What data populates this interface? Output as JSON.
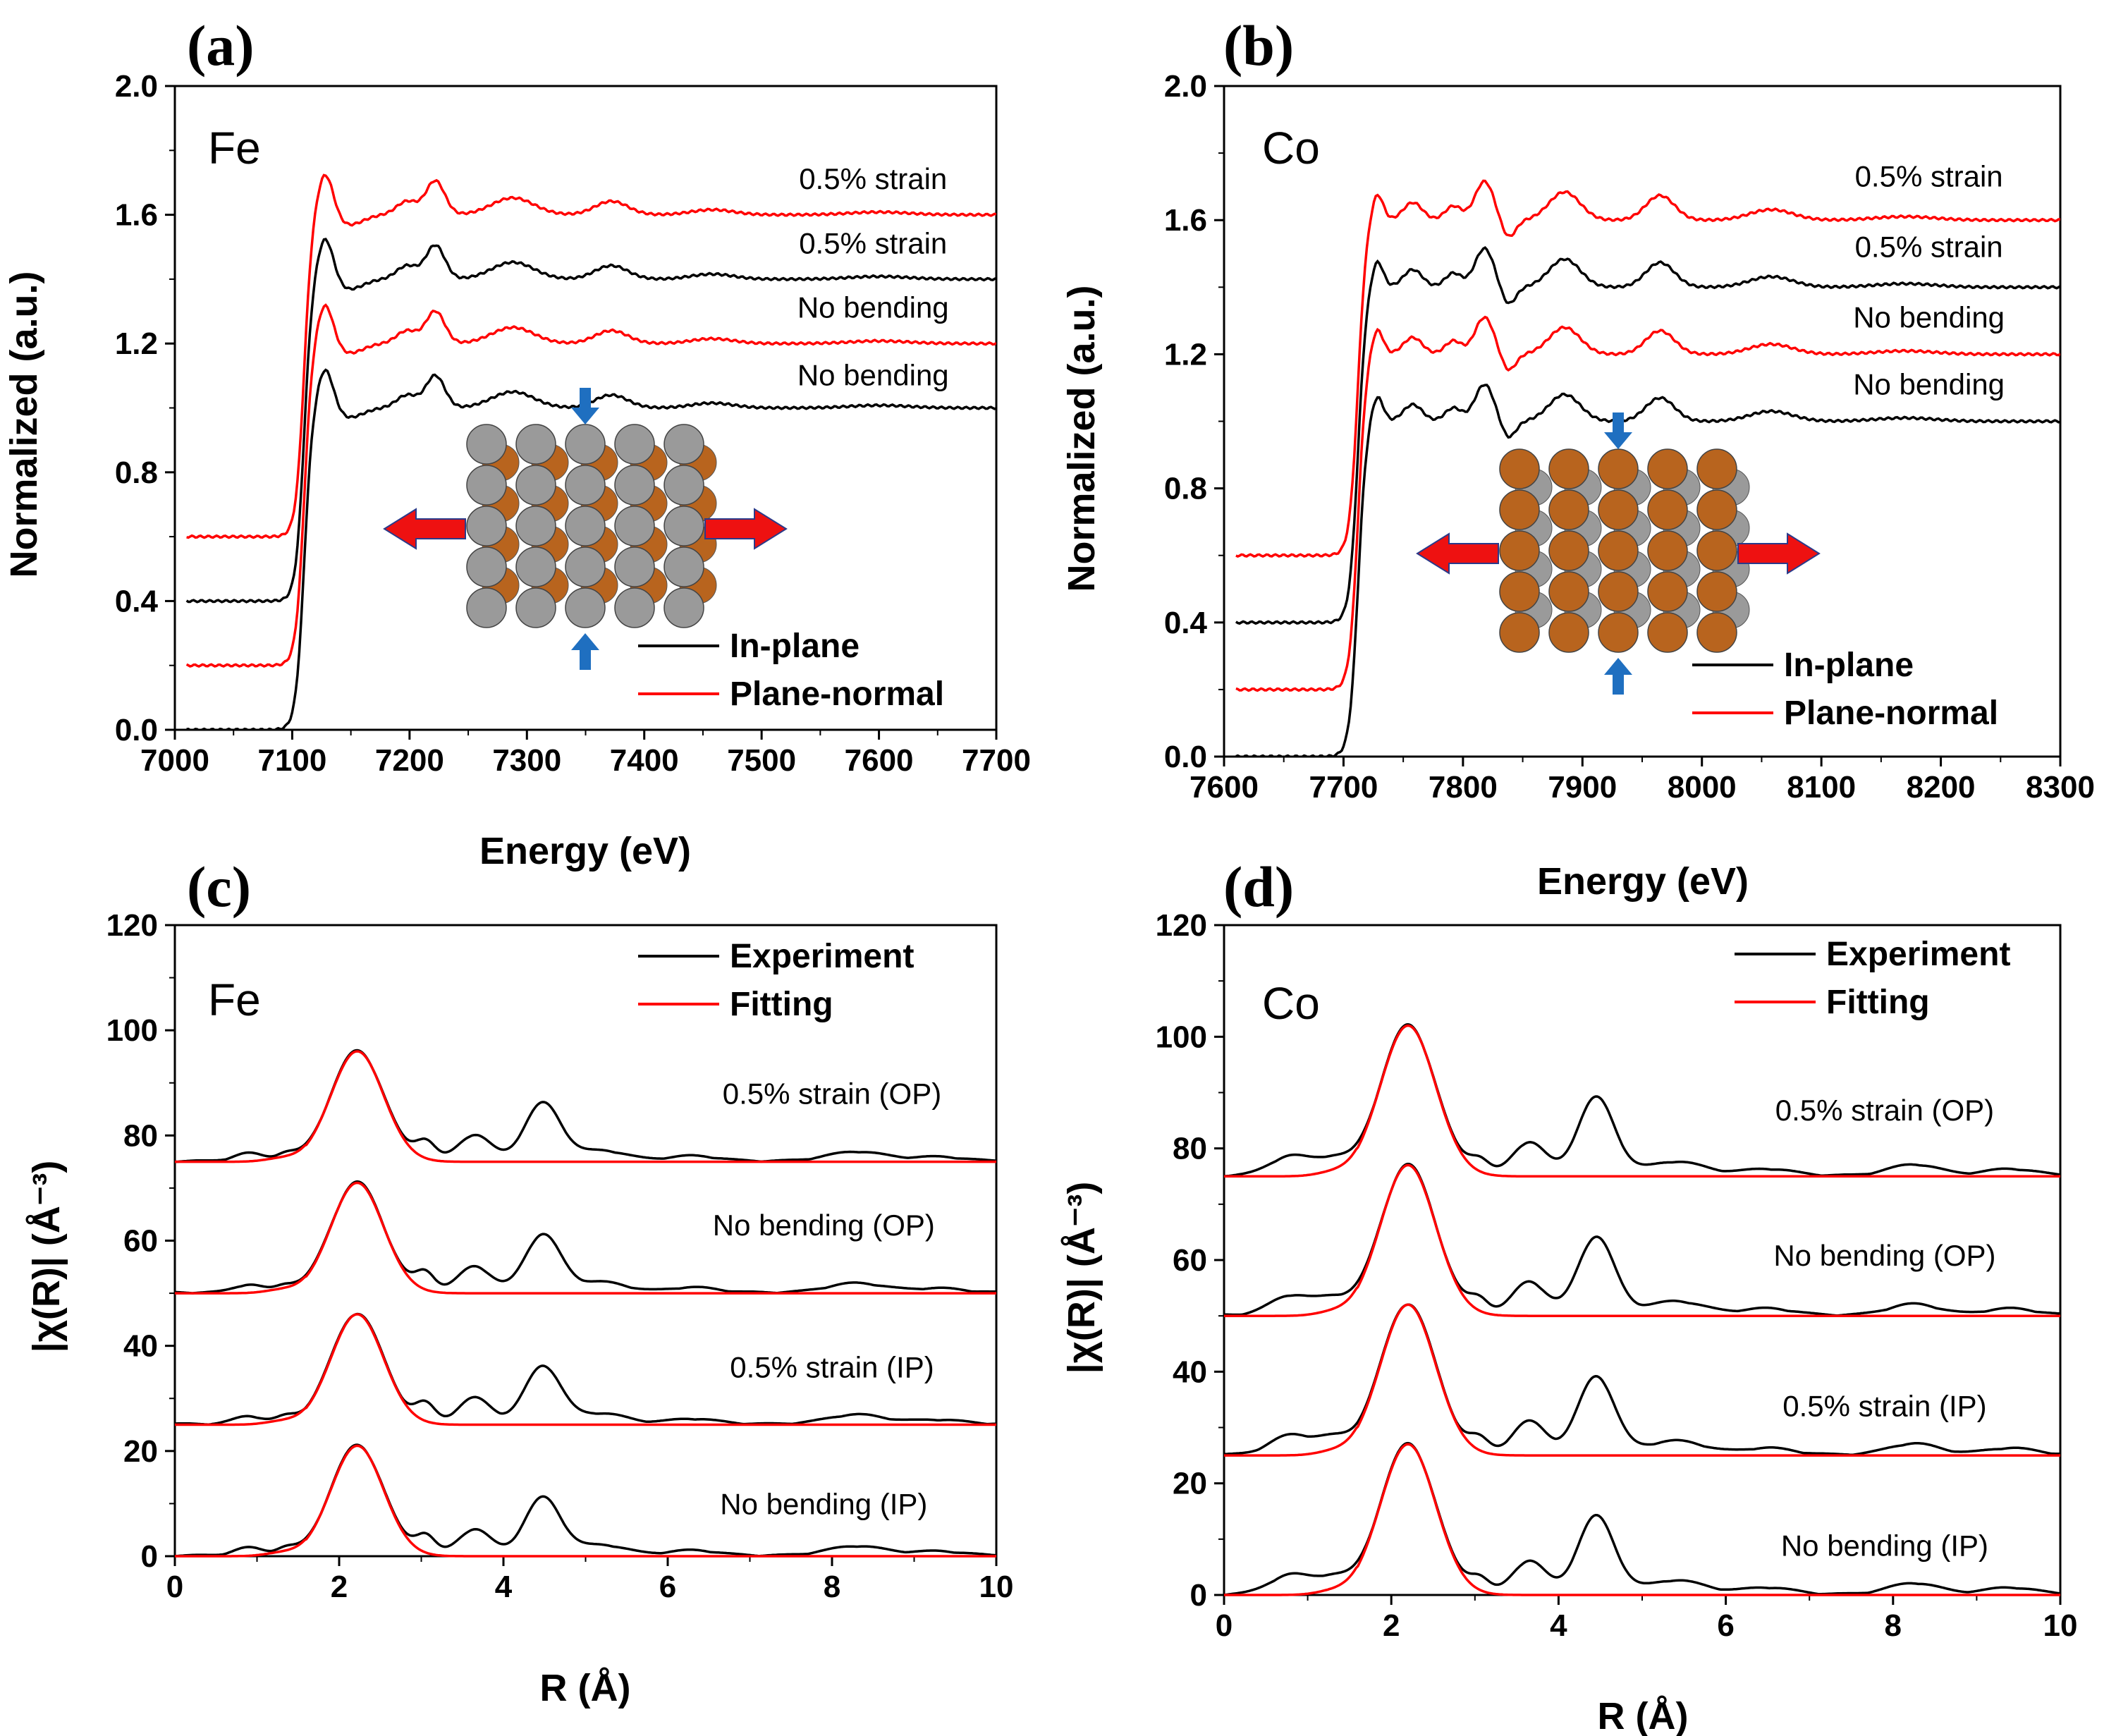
{
  "colors": {
    "in_plane": "#000000",
    "plane_normal": "#ff0000",
    "experiment": "#000000",
    "fitting": "#ff0000",
    "arrow_red": "#ee1111",
    "arrow_blue": "#1f6fc0",
    "atom_gray": "#9a9a9a",
    "atom_brown": "#b8641e"
  },
  "chart_data": [
    {
      "panel": "(a)",
      "type": "line",
      "element_label": "Fe",
      "xlabel": "Energy (eV)",
      "ylabel": "Normalized (a.u.)",
      "xlim": [
        7000,
        7700
      ],
      "ylim": [
        0.0,
        2.0
      ],
      "xticks": [
        "7000",
        "7100",
        "7200",
        "7300",
        "7400",
        "7500",
        "7600",
        "7700"
      ],
      "yticks": [
        "0.0",
        "0.4",
        "0.8",
        "1.2",
        "1.6",
        "2.0"
      ],
      "legend": [
        {
          "name": "In-plane",
          "color": "#000000"
        },
        {
          "name": "Plane-normal",
          "color": "#ff0000"
        }
      ],
      "edge": 7110,
      "peak": 7128,
      "x_start": 7010,
      "features": [
        [
          7128,
          0.13,
          7
        ],
        [
          7148,
          -0.03,
          12
        ],
        [
          7198,
          0.04,
          9
        ],
        [
          7222,
          0.1,
          8
        ],
        [
          7288,
          0.05,
          18
        ],
        [
          7372,
          0.04,
          14
        ],
        [
          7458,
          0.015,
          18
        ],
        [
          7600,
          0.008,
          25
        ]
      ],
      "curves": [
        {
          "label": "No bending",
          "series": "In-plane",
          "offset": 0.0
        },
        {
          "label": "No bending",
          "series": "Plane-normal",
          "offset": 0.2
        },
        {
          "label": "0.5% strain",
          "series": "In-plane",
          "offset": 0.4
        },
        {
          "label": "0.5% strain",
          "series": "Plane-normal",
          "offset": 0.6
        }
      ],
      "curve_labels": [
        {
          "text": "0.5% strain",
          "x": 7595,
          "y": 1.68
        },
        {
          "text": "0.5% strain",
          "x": 7595,
          "y": 1.48
        },
        {
          "text": "No bending",
          "x": 7595,
          "y": 1.28
        },
        {
          "text": "No bending",
          "x": 7595,
          "y": 1.07
        }
      ]
    },
    {
      "panel": "(b)",
      "type": "line",
      "element_label": "Co",
      "xlabel": "Energy (eV)",
      "ylabel": "Normalized (a.u.)",
      "xlim": [
        7600,
        8300
      ],
      "ylim": [
        0.0,
        2.0
      ],
      "xticks": [
        "7600",
        "7700",
        "7800",
        "7900",
        "8000",
        "8100",
        "8200",
        "8300"
      ],
      "yticks": [
        "0.0",
        "0.4",
        "0.8",
        "1.2",
        "1.6",
        "2.0"
      ],
      "legend": [
        {
          "name": "In-plane",
          "color": "#000000"
        },
        {
          "name": "Plane-normal",
          "color": "#ff0000"
        }
      ],
      "edge": 7712,
      "peak": 7728,
      "x_start": 7610,
      "features": [
        [
          7728,
          0.08,
          5
        ],
        [
          7758,
          0.05,
          8
        ],
        [
          7792,
          0.04,
          7
        ],
        [
          7818,
          0.11,
          8
        ],
        [
          7838,
          -0.05,
          6
        ],
        [
          7885,
          0.08,
          13
        ],
        [
          7965,
          0.07,
          12
        ],
        [
          8058,
          0.03,
          18
        ],
        [
          8170,
          0.01,
          25
        ]
      ],
      "curves": [
        {
          "label": "No bending",
          "series": "In-plane",
          "offset": 0.0
        },
        {
          "label": "No bending",
          "series": "Plane-normal",
          "offset": 0.2
        },
        {
          "label": "0.5% strain",
          "series": "In-plane",
          "offset": 0.4
        },
        {
          "label": "0.5% strain",
          "series": "Plane-normal",
          "offset": 0.6
        }
      ],
      "curve_labels": [
        {
          "text": "0.5% strain",
          "x": 8190,
          "y": 1.7
        },
        {
          "text": "0.5% strain",
          "x": 8190,
          "y": 1.49
        },
        {
          "text": "No bending",
          "x": 8190,
          "y": 1.28
        },
        {
          "text": "No bending",
          "x": 8190,
          "y": 1.08
        }
      ]
    },
    {
      "panel": "(c)",
      "type": "line",
      "element_label": "Fe",
      "xlabel": "R (Å)",
      "ylabel": "|χ(R)| (Å⁻³)",
      "xlim": [
        0,
        10
      ],
      "ylim": [
        0,
        120
      ],
      "xticks": [
        "0",
        "2",
        "4",
        "6",
        "8",
        "10"
      ],
      "yticks": [
        "0",
        "20",
        "40",
        "60",
        "80",
        "100",
        "120"
      ],
      "legend": [
        {
          "name": "Experiment",
          "color": "#000000"
        },
        {
          "name": "Fitting",
          "color": "#ff0000"
        }
      ],
      "main_peak": {
        "center": 2.22,
        "height": 21,
        "width": 0.32
      },
      "experiment_features": [
        [
          0.9,
          1.5,
          0.18
        ],
        [
          1.35,
          1.2,
          0.12
        ],
        [
          3.05,
          3.5,
          0.12
        ],
        [
          3.65,
          5,
          0.2
        ],
        [
          4.48,
          11,
          0.22
        ],
        [
          5.2,
          2,
          0.3
        ],
        [
          6.3,
          1,
          0.3
        ],
        [
          8.3,
          1.8,
          0.35
        ],
        [
          9.3,
          0.8,
          0.3
        ]
      ],
      "curves": [
        {
          "label": "No bending (IP)",
          "offset": 0
        },
        {
          "label": "0.5% strain (IP)",
          "offset": 25
        },
        {
          "label": "No bending (OP)",
          "offset": 50
        },
        {
          "label": "0.5% strain (OP)",
          "offset": 75
        }
      ],
      "curve_labels": [
        {
          "text": "0.5% strain (OP)",
          "x": 8.0,
          "y": 86
        },
        {
          "text": "No bending (OP)",
          "x": 7.9,
          "y": 61
        },
        {
          "text": "0.5% strain (IP)",
          "x": 8.0,
          "y": 34
        },
        {
          "text": "No bending (IP)",
          "x": 7.9,
          "y": 8
        }
      ]
    },
    {
      "panel": "(d)",
      "type": "line",
      "element_label": "Co",
      "xlabel": "R (Å)",
      "ylabel": "|χ(R)| (Å⁻³)",
      "xlim": [
        0,
        10
      ],
      "ylim": [
        0,
        120
      ],
      "xticks": [
        "0",
        "2",
        "4",
        "6",
        "8",
        "10"
      ],
      "yticks": [
        "0",
        "20",
        "40",
        "60",
        "80",
        "100",
        "120"
      ],
      "legend": [
        {
          "name": "Experiment",
          "color": "#000000"
        },
        {
          "name": "Fitting",
          "color": "#ff0000"
        }
      ],
      "main_peak": {
        "center": 2.2,
        "height": 27,
        "width": 0.33
      },
      "experiment_features": [
        [
          0.8,
          3.5,
          0.25
        ],
        [
          1.3,
          2.5,
          0.2
        ],
        [
          3.05,
          2.5,
          0.12
        ],
        [
          3.65,
          6,
          0.2
        ],
        [
          4.45,
          14,
          0.22
        ],
        [
          5.4,
          2.5,
          0.35
        ],
        [
          6.5,
          1.2,
          0.3
        ],
        [
          8.25,
          2,
          0.3
        ],
        [
          9.4,
          1.2,
          0.3
        ]
      ],
      "curves": [
        {
          "label": "No bending (IP)",
          "offset": 0
        },
        {
          "label": "0.5% strain (IP)",
          "offset": 25
        },
        {
          "label": "No bending (OP)",
          "offset": 50
        },
        {
          "label": "0.5% strain (OP)",
          "offset": 75
        }
      ],
      "curve_labels": [
        {
          "text": "0.5% strain (OP)",
          "x": 7.9,
          "y": 85
        },
        {
          "text": "No bending (OP)",
          "x": 7.9,
          "y": 59
        },
        {
          "text": "0.5% strain (IP)",
          "x": 7.9,
          "y": 32
        },
        {
          "text": "No bending (IP)",
          "x": 7.9,
          "y": 7
        }
      ]
    }
  ]
}
